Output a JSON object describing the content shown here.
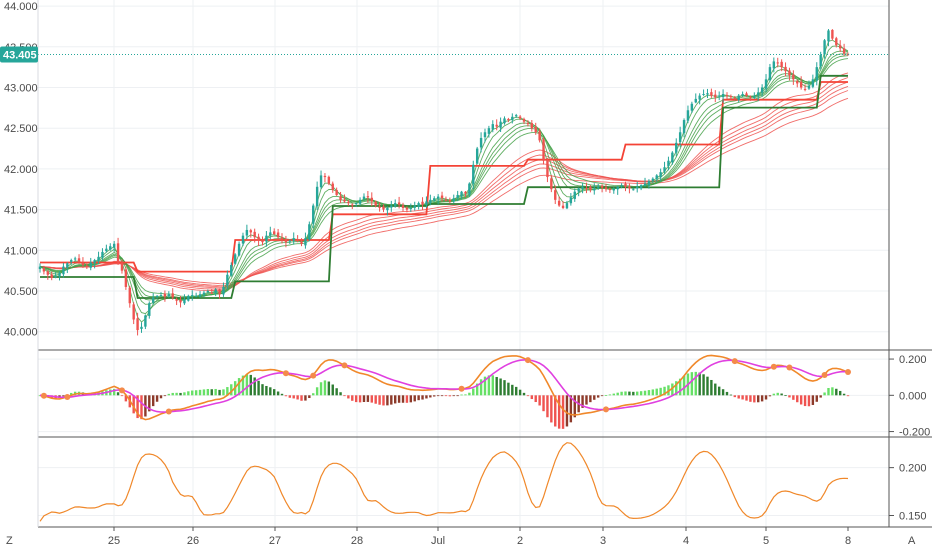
{
  "chart_data": [
    {
      "type": "candlestick",
      "pane": "price",
      "ylim": [
        39.8,
        44.05
      ],
      "y_ticks": [
        "40.000",
        "40.500",
        "41.000",
        "41.500",
        "42.000",
        "42.500",
        "43.000",
        "43.500",
        "44.000"
      ],
      "last_price": 43.405,
      "last_price_label": "43.405",
      "up_color": "#26a69a",
      "down_color": "#ef5350",
      "x_labels": [
        "25",
        "26",
        "27",
        "28",
        "Jul",
        "2",
        "3",
        "4",
        "5",
        "8"
      ],
      "closes": [
        40.8,
        40.74,
        40.7,
        40.66,
        40.68,
        40.72,
        40.8,
        40.84,
        40.88,
        40.9,
        40.86,
        40.82,
        40.8,
        40.85,
        40.88,
        40.92,
        40.98,
        41.02,
        41.05,
        41.08,
        40.85,
        40.75,
        40.55,
        40.35,
        40.15,
        40.02,
        40.06,
        40.2,
        40.35,
        40.42,
        40.44,
        40.45,
        40.43,
        40.46,
        40.42,
        40.38,
        40.36,
        40.4,
        40.44,
        40.45,
        40.44,
        40.46,
        40.48,
        40.5,
        40.48,
        40.52,
        40.46,
        40.55,
        40.7,
        40.82,
        40.95,
        41.08,
        41.18,
        41.25,
        41.22,
        41.16,
        41.12,
        41.1,
        41.18,
        41.22,
        41.2,
        41.16,
        41.14,
        41.1,
        41.12,
        41.15,
        41.12,
        41.08,
        41.15,
        41.32,
        41.55,
        41.78,
        41.92,
        41.9,
        41.82,
        41.74,
        41.68,
        41.62,
        41.6,
        41.58,
        41.56,
        41.58,
        41.62,
        41.66,
        41.65,
        41.6,
        41.55,
        41.52,
        41.5,
        41.52,
        41.55,
        41.58,
        41.56,
        41.52,
        41.5,
        41.52,
        41.55,
        41.58,
        41.56,
        41.6,
        41.62,
        41.64,
        41.66,
        41.64,
        41.62,
        41.6,
        41.64,
        41.68,
        41.72,
        41.7,
        41.82,
        42.05,
        42.25,
        42.38,
        42.45,
        42.5,
        42.55,
        42.52,
        42.58,
        42.62,
        42.6,
        42.64,
        42.66,
        42.62,
        42.58,
        42.55,
        42.5,
        42.45,
        42.35,
        42.1,
        41.9,
        41.75,
        41.62,
        41.55,
        41.52,
        41.58,
        41.65,
        41.72,
        41.76,
        41.78,
        41.76,
        41.74,
        41.76,
        41.78,
        41.77,
        41.75,
        41.74,
        41.76,
        41.78,
        41.8,
        41.78,
        41.76,
        41.75,
        41.78,
        41.8,
        41.82,
        41.85,
        41.88,
        41.92,
        41.96,
        42.02,
        42.1,
        42.2,
        42.32,
        42.45,
        42.6,
        42.72,
        42.8,
        42.86,
        42.9,
        42.92,
        42.93,
        42.9,
        42.88,
        42.9,
        42.92,
        42.9,
        42.88,
        42.86,
        42.9,
        42.92,
        42.9,
        42.88,
        42.9,
        42.94,
        43.0,
        43.1,
        43.25,
        43.32,
        43.3,
        43.25,
        43.2,
        43.15,
        43.1,
        43.05,
        43.0,
        42.98,
        43.02,
        43.1,
        43.25,
        43.4,
        43.58,
        43.7,
        43.6,
        43.52,
        43.48,
        43.42,
        43.405
      ]
    },
    {
      "type": "line",
      "pane": "price",
      "name": "",
      "series_note": "fast moving average ribbon (green)",
      "color": "#43a047",
      "ribbon_periods": [
        3,
        5,
        8,
        10,
        12,
        15
      ],
      "stepped_line_color": "#2e7d32"
    },
    {
      "type": "line",
      "pane": "price",
      "color": "#ef5350",
      "ribbon_periods": [
        30,
        35,
        40,
        45,
        50,
        60
      ],
      "stepped_line_color": "#f44336"
    },
    {
      "type": "bar_and_line",
      "pane": "oscillator",
      "ylim": [
        -0.23,
        0.25
      ],
      "y_ticks": [
        "0.200",
        "0.000",
        "-0.200"
      ],
      "histogram_pos_color": "#66e066",
      "histogram_neg_color": "#ef5350",
      "histogram_dark_pos_color": "#2e7d32",
      "histogram_dark_neg_color": "#8d3a2a",
      "line_a_color": "#f0882a",
      "line_b_color": "#e040e0",
      "cross_marker_color": "#f48a4a"
    },
    {
      "type": "line",
      "pane": "lower",
      "ylim": [
        0.138,
        0.232
      ],
      "y_ticks": [
        "0.200",
        "0.150"
      ],
      "color": "#f0882a"
    }
  ],
  "controls": {
    "zoom_label": "Z",
    "auto_label": "A"
  },
  "colors": {
    "grid": "#eef0f3",
    "axis_border": "#555555",
    "last_price_line": "#26a69a"
  }
}
